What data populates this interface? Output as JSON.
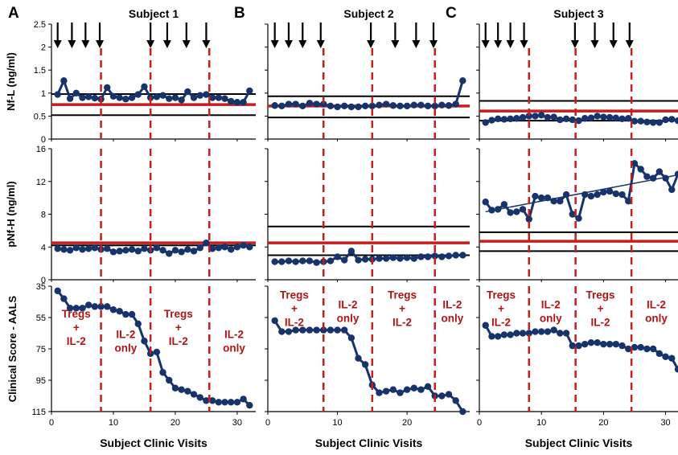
{
  "colors": {
    "series": "#16336b",
    "treatment_line": "#c41e1e",
    "threshold_line": "#000000",
    "annotation": "#b01515"
  },
  "chart_data": [
    {
      "panel": "A",
      "subject_title": "Subject 1",
      "type": "line",
      "x_range": [
        0,
        33
      ],
      "x_ticks": [
        0,
        10,
        20,
        30
      ],
      "xlabel": "Subject Clinic Visits",
      "treatment_changes": [
        8,
        16,
        25.5
      ],
      "arrows_x": [
        1,
        3.3,
        5.5,
        7.8,
        16,
        18.7,
        21.8,
        25
      ],
      "annotations": [
        {
          "lines": [
            "Tregs",
            "+",
            "IL-2"
          ],
          "x": 4,
          "y": 55
        },
        {
          "lines": [
            "IL-2",
            "only"
          ],
          "x": 12,
          "y": 68
        },
        {
          "lines": [
            "Tregs",
            "+",
            "IL-2"
          ],
          "x": 20.5,
          "y": 55
        },
        {
          "lines": [
            "IL-2",
            "only"
          ],
          "x": 29.5,
          "y": 68
        }
      ],
      "nfl": {
        "ylabel": "Nf-L (ng/ml)",
        "ylim": [
          0,
          2.5
        ],
        "yticks": [
          0,
          0.5,
          1,
          1.5,
          2,
          2.5
        ],
        "ytick_labels": [
          "0",
          "0.5",
          "1",
          "1.5",
          "2",
          "2.5"
        ],
        "threshold_lines": [
          0.52,
          0.98
        ],
        "treatment_line": 0.75,
        "x": [
          1,
          2,
          3,
          4,
          5,
          6,
          7,
          8,
          9,
          10,
          11,
          12,
          13,
          14,
          15,
          16,
          17,
          18,
          19,
          20,
          21,
          22,
          23,
          24,
          25,
          26,
          27,
          28,
          29,
          30,
          31,
          32
        ],
        "y": [
          0.97,
          1.27,
          0.88,
          1.0,
          0.9,
          0.92,
          0.89,
          0.87,
          1.12,
          0.93,
          0.9,
          0.87,
          0.9,
          0.97,
          1.14,
          0.9,
          0.92,
          0.95,
          0.88,
          0.9,
          0.85,
          1.03,
          0.9,
          0.95,
          0.97,
          0.9,
          0.9,
          0.88,
          0.82,
          0.8,
          0.8,
          1.05
        ]
      },
      "pnfh": {
        "ylabel": "pNf-H (ng/ml)",
        "ylim": [
          0,
          16
        ],
        "yticks": [
          0,
          4,
          8,
          12,
          16
        ],
        "ytick_labels": [
          "0",
          "4",
          "8",
          "12",
          "16"
        ],
        "threshold_lines": [
          4.2
        ],
        "treatment_line": 4.5,
        "x": [
          1,
          2,
          3,
          4,
          5,
          6,
          7,
          8,
          9,
          10,
          11,
          12,
          13,
          14,
          15,
          16,
          17,
          18,
          19,
          20,
          21,
          22,
          23,
          24,
          25,
          26,
          27,
          28,
          29,
          30,
          31,
          32
        ],
        "y": [
          3.8,
          3.7,
          3.6,
          3.9,
          3.7,
          3.8,
          3.9,
          3.7,
          3.8,
          3.4,
          3.5,
          3.6,
          3.7,
          3.5,
          3.8,
          3.6,
          3.9,
          3.6,
          3.2,
          3.6,
          3.4,
          3.7,
          3.5,
          3.9,
          4.5,
          3.8,
          3.9,
          4.0,
          3.7,
          4.0,
          4.2,
          4.0
        ]
      },
      "aals": {
        "ylabel": "Clinical Score - AALS",
        "ylim": [
          115,
          35
        ],
        "inverted": true,
        "yticks": [
          35,
          55,
          75,
          95,
          115
        ],
        "ytick_labels": [
          "35",
          "55",
          "75",
          "95",
          "115"
        ],
        "x": [
          1,
          2,
          3,
          4,
          5,
          6,
          7,
          8,
          9,
          10,
          11,
          12,
          13,
          14,
          15,
          16,
          17,
          18,
          19,
          20,
          21,
          22,
          23,
          24,
          25,
          26,
          27,
          28,
          29,
          30,
          31,
          32
        ],
        "y": [
          38,
          43,
          49,
          49,
          49,
          47,
          48,
          48,
          48,
          50,
          51,
          53,
          53,
          59,
          70,
          78,
          77,
          90,
          95,
          100,
          101,
          102,
          104,
          106,
          108,
          108,
          109,
          109,
          109,
          109,
          107,
          111
        ]
      }
    },
    {
      "panel": "B",
      "subject_title": "Subject 2",
      "type": "line",
      "x_range": [
        0,
        29
      ],
      "x_ticks": [
        0,
        10,
        20
      ],
      "xlabel": "Subject Clinic Visits",
      "treatment_changes": [
        8,
        15,
        24
      ],
      "arrows_x": [
        1,
        3,
        5,
        7.6,
        14.8,
        18.3,
        21.3,
        23.8
      ],
      "annotations": [
        {
          "lines": [
            "Tregs",
            "+",
            "IL-2"
          ],
          "x": 3.8,
          "y": 43
        },
        {
          "lines": [
            "IL-2",
            "only"
          ],
          "x": 11.5,
          "y": 49
        },
        {
          "lines": [
            "Tregs",
            "+",
            "IL-2"
          ],
          "x": 19.3,
          "y": 43
        },
        {
          "lines": [
            "IL-2",
            "only"
          ],
          "x": 26.5,
          "y": 49
        }
      ],
      "nfl": {
        "ylim": [
          0,
          2.5
        ],
        "yticks": [
          0,
          0.5,
          1,
          1.5,
          2,
          2.5
        ],
        "threshold_lines": [
          0.47,
          0.93
        ],
        "treatment_line": 0.72,
        "x": [
          1,
          2,
          3,
          4,
          5,
          6,
          7,
          8,
          9,
          10,
          11,
          12,
          13,
          14,
          15,
          16,
          17,
          18,
          19,
          20,
          21,
          22,
          23,
          24,
          25,
          26,
          27,
          28
        ],
        "y": [
          0.73,
          0.72,
          0.76,
          0.76,
          0.72,
          0.78,
          0.76,
          0.76,
          0.72,
          0.7,
          0.72,
          0.7,
          0.7,
          0.72,
          0.72,
          0.74,
          0.76,
          0.73,
          0.72,
          0.72,
          0.74,
          0.74,
          0.72,
          0.72,
          0.74,
          0.73,
          0.76,
          1.27
        ]
      },
      "pnfh": {
        "ylim": [
          0,
          16
        ],
        "yticks": [
          0,
          4,
          8,
          12,
          16
        ],
        "threshold_lines": [
          6.5,
          3.0
        ],
        "treatment_line": 4.5,
        "x": [
          1,
          2,
          3,
          4,
          5,
          6,
          7,
          8,
          9,
          10,
          11,
          12,
          13,
          14,
          15,
          16,
          17,
          18,
          19,
          20,
          21,
          22,
          23,
          24,
          25,
          26,
          27,
          28
        ],
        "y": [
          2.2,
          2.2,
          2.3,
          2.2,
          2.3,
          2.3,
          2.1,
          2.2,
          2.3,
          2.8,
          2.4,
          3.5,
          2.4,
          2.5,
          2.5,
          2.6,
          2.6,
          2.7,
          2.6,
          2.7,
          2.6,
          2.8,
          2.8,
          2.9,
          2.8,
          2.9,
          3.0,
          3.0
        ]
      },
      "aals": {
        "ylim": [
          115,
          35
        ],
        "inverted": true,
        "yticks": [
          35,
          55,
          75,
          95,
          115
        ],
        "x": [
          1,
          2,
          3,
          4,
          5,
          6,
          7,
          8,
          9,
          10,
          11,
          12,
          13,
          14,
          15,
          16,
          17,
          18,
          19,
          20,
          21,
          22,
          23,
          24,
          25,
          26,
          27,
          28
        ],
        "y": [
          57,
          64,
          64,
          63,
          63,
          63,
          63,
          63,
          63,
          63,
          63,
          68,
          81,
          85,
          98,
          103,
          102,
          101,
          103,
          101,
          100,
          101,
          99,
          105,
          105,
          104,
          108,
          115
        ]
      }
    },
    {
      "panel": "C",
      "subject_title": "Subject 3",
      "type": "line",
      "x_range": [
        0,
        32
      ],
      "x_ticks": [
        0,
        10,
        20,
        30
      ],
      "xlabel": "Subject Clinic Visits",
      "treatment_changes": [
        8,
        15.5,
        24.5
      ],
      "arrows_x": [
        1,
        3,
        5,
        7.2,
        15.4,
        18.6,
        21.6,
        24.2
      ],
      "annotations": [
        {
          "lines": [
            "Tregs",
            "+",
            "IL-2"
          ],
          "x": 3.5,
          "y": 43
        },
        {
          "lines": [
            "IL-2",
            "only"
          ],
          "x": 11.5,
          "y": 49
        },
        {
          "lines": [
            "Tregs",
            "+",
            "IL-2"
          ],
          "x": 19.5,
          "y": 43
        },
        {
          "lines": [
            "IL-2",
            "only"
          ],
          "x": 28.5,
          "y": 49
        }
      ],
      "nfl": {
        "ylim": [
          0,
          2.5
        ],
        "yticks": [
          0,
          0.5,
          1,
          1.5,
          2,
          2.5
        ],
        "threshold_lines": [
          0.83,
          0.4
        ],
        "treatment_line": 0.61,
        "x": [
          1,
          2,
          3,
          4,
          5,
          6,
          7,
          8,
          9,
          10,
          11,
          12,
          13,
          14,
          15,
          16,
          17,
          18,
          19,
          20,
          21,
          22,
          23,
          24,
          25,
          26,
          27,
          28,
          29,
          30,
          31,
          32
        ],
        "y": [
          0.36,
          0.41,
          0.44,
          0.43,
          0.44,
          0.45,
          0.47,
          0.5,
          0.5,
          0.52,
          0.47,
          0.48,
          0.42,
          0.44,
          0.42,
          0.4,
          0.45,
          0.46,
          0.5,
          0.48,
          0.47,
          0.46,
          0.44,
          0.45,
          0.39,
          0.39,
          0.37,
          0.36,
          0.36,
          0.42,
          0.43,
          0.4
        ]
      },
      "pnfh": {
        "ylim": [
          0,
          16
        ],
        "yticks": [
          0,
          4,
          8,
          12,
          16
        ],
        "threshold_lines": [
          5.8,
          3.5
        ],
        "treatment_line": 4.7,
        "trend_line": [
          [
            1,
            8.3
          ],
          [
            32,
            12.8
          ]
        ],
        "x": [
          1,
          2,
          3,
          4,
          5,
          6,
          7,
          8,
          9,
          10,
          11,
          12,
          13,
          14,
          15,
          16,
          17,
          18,
          19,
          20,
          21,
          22,
          23,
          24,
          25,
          26,
          27,
          28,
          29,
          30,
          31,
          32
        ],
        "y": [
          9.5,
          8.5,
          8.6,
          9.2,
          8.2,
          8.3,
          8.6,
          7.4,
          10.2,
          10.0,
          10.0,
          9.6,
          9.6,
          10.4,
          8.0,
          7.5,
          10.4,
          10.2,
          10.4,
          10.7,
          10.8,
          10.5,
          10.4,
          9.6,
          14.2,
          13.5,
          12.6,
          12.4,
          13.2,
          12.4,
          11.0,
          12.9
        ]
      },
      "aals": {
        "ylim": [
          115,
          35
        ],
        "inverted": true,
        "yticks": [
          35,
          55,
          75,
          95,
          115
        ],
        "x": [
          1,
          2,
          3,
          4,
          5,
          6,
          7,
          8,
          9,
          10,
          11,
          12,
          13,
          14,
          15,
          16,
          17,
          18,
          19,
          20,
          21,
          22,
          23,
          24,
          25,
          26,
          27,
          28,
          29,
          30,
          31,
          32
        ],
        "y": [
          60,
          67,
          67,
          66,
          66,
          65,
          65,
          65,
          64,
          64,
          64,
          63,
          65,
          65,
          73,
          73,
          72,
          71,
          71,
          72,
          72,
          72,
          73,
          75,
          74,
          74,
          75,
          75,
          78,
          80,
          81,
          88
        ]
      }
    }
  ]
}
